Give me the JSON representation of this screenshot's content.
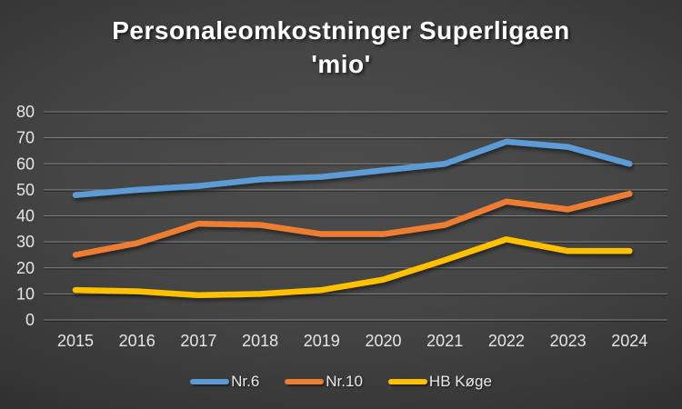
{
  "title": {
    "line1": "Personaleomkostninger Superligaen",
    "line2": "'mio'"
  },
  "colors": {
    "background_center": "#4c4c4c",
    "background_edge": "#1e1e1e",
    "title_text": "#ffffff",
    "axis_text": "#e6e6e6",
    "gridline": "#d9d9d9"
  },
  "chart_data": {
    "type": "line",
    "title": "Personaleomkostninger Superligaen 'mio'",
    "categories": [
      "2015",
      "2016",
      "2017",
      "2018",
      "2019",
      "2020",
      "2021",
      "2022",
      "2023",
      "2024"
    ],
    "series": [
      {
        "name": "Nr.6",
        "color": "#5B9BD5",
        "values": [
          48,
          50,
          51.5,
          54,
          55,
          57.5,
          60,
          68.5,
          66.5,
          60
        ]
      },
      {
        "name": "Nr.10",
        "color": "#ED7D31",
        "values": [
          25,
          29.5,
          37,
          36.5,
          33,
          33,
          36.5,
          45.5,
          42.5,
          48.5
        ]
      },
      {
        "name": "HB Køge",
        "color": "#FFC000",
        "values": [
          11.5,
          11,
          9.5,
          10,
          11.5,
          15.5,
          23,
          31,
          26.5,
          26.5
        ]
      }
    ],
    "xlabel": "",
    "ylabel": "",
    "ylim": [
      0,
      80
    ],
    "y_ticks": [
      0,
      10,
      20,
      30,
      40,
      50,
      60,
      70,
      80
    ],
    "grid": true,
    "legend_position": "bottom"
  }
}
